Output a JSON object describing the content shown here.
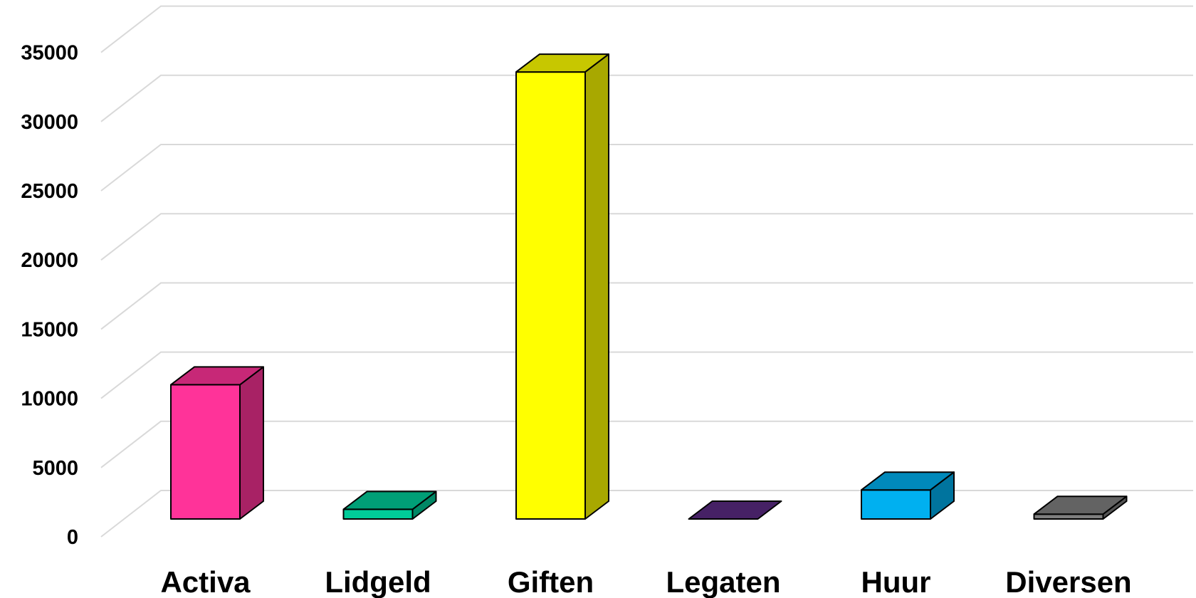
{
  "chart_data": {
    "type": "bar",
    "title": "",
    "xlabel": "",
    "ylabel": "",
    "style": "3d-column",
    "categories": [
      "Activa",
      "Lidgeld",
      "Giften",
      "Legaten",
      "Huur",
      "Diversen"
    ],
    "values": [
      9700,
      700,
      32300,
      0,
      2100,
      350
    ],
    "colors": [
      "#ff3399",
      "#00cc99",
      "#ffff00",
      "#5a2a82",
      "#00b0f0",
      "#7f7f7f"
    ],
    "ylim": [
      0,
      35000
    ],
    "yticks": [
      0,
      5000,
      10000,
      15000,
      20000,
      25000,
      30000,
      35000
    ],
    "ytick_labels": [
      "0",
      "5000",
      "10000",
      "15000",
      "20000",
      "25000",
      "30000",
      "35000"
    ],
    "grid": true,
    "legend": "none"
  }
}
